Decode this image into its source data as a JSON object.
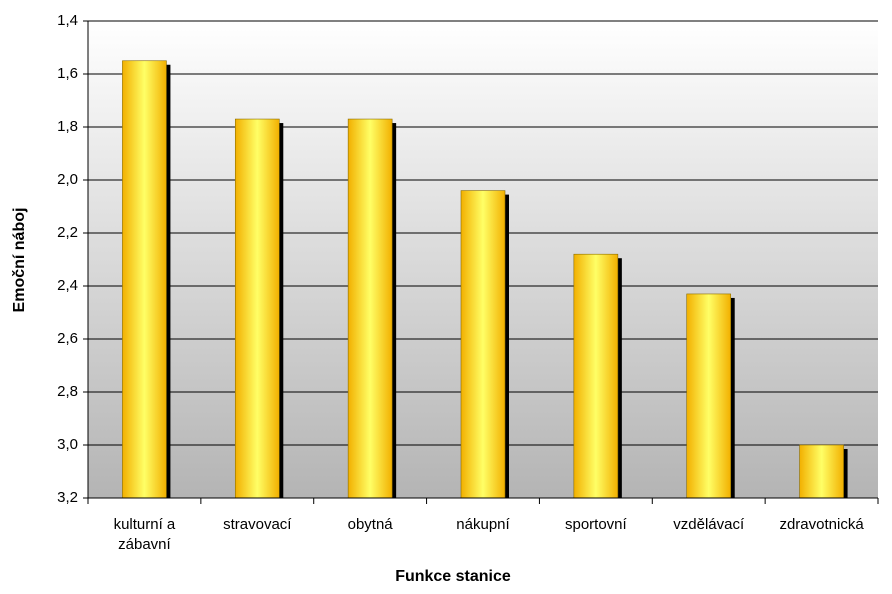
{
  "chart_data": {
    "type": "bar",
    "x_label": "Funkce stanice",
    "y_label": "Emoční náboj",
    "categories": [
      "kulturní a zábavní",
      "stravovací",
      "obytná",
      "nákupní",
      "sportovní",
      "vzdělávací",
      "zdravotnická"
    ],
    "values": [
      1.55,
      1.77,
      1.77,
      2.04,
      2.28,
      2.43,
      3.0
    ],
    "color": "#ffd700",
    "ylim": [
      3.2,
      1.4
    ],
    "yticks": [
      {
        "value": 1.4,
        "label": "1,4"
      },
      {
        "value": 1.6,
        "label": "1,6"
      },
      {
        "value": 1.8,
        "label": "1,8"
      },
      {
        "value": 2.0,
        "label": "2,0"
      },
      {
        "value": 2.2,
        "label": "2,2"
      },
      {
        "value": 2.4,
        "label": "2,4"
      },
      {
        "value": 2.6,
        "label": "2,6"
      },
      {
        "value": 2.8,
        "label": "2,8"
      },
      {
        "value": 3.0,
        "label": "3,0"
      },
      {
        "value": 3.2,
        "label": "3,2"
      }
    ],
    "grid": true
  }
}
